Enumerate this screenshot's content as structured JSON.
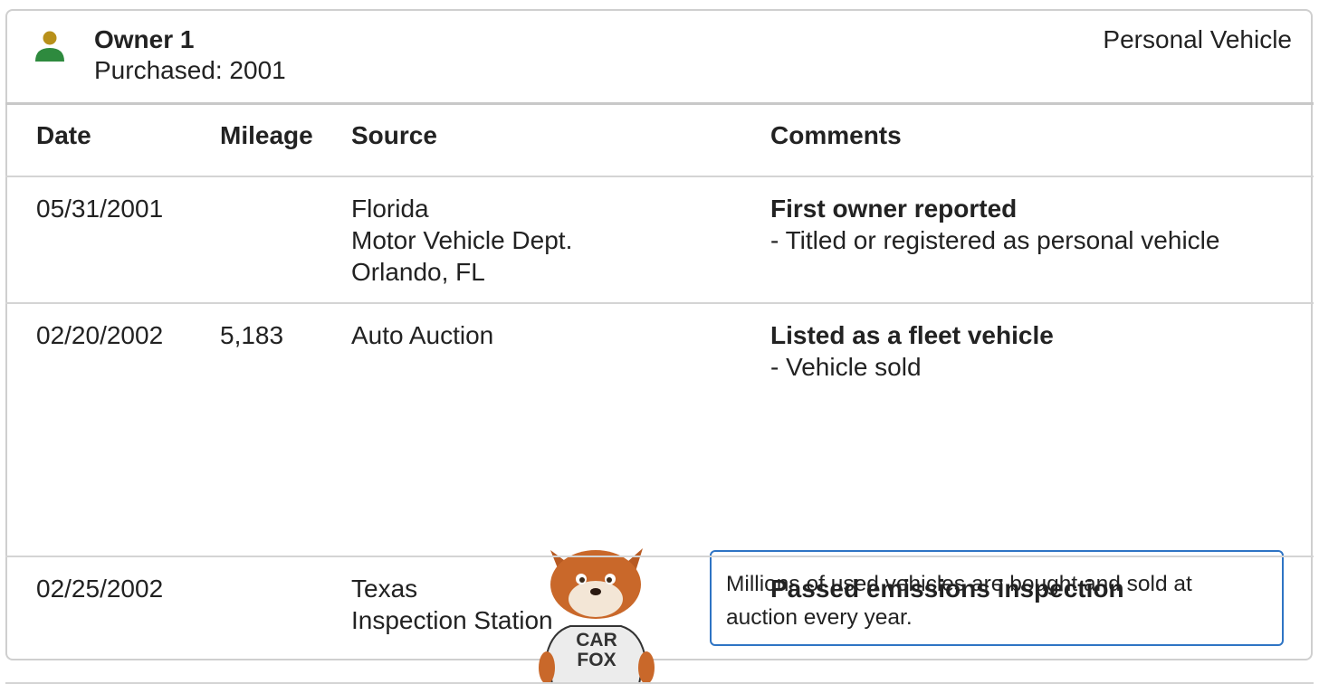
{
  "header": {
    "owner": "Owner 1",
    "purchased": "Purchased: 2001",
    "vehicle_type": "Personal Vehicle"
  },
  "table": {
    "columns": [
      "Date",
      "Mileage",
      "Source",
      "Comments"
    ],
    "rows": [
      {
        "date": "05/31/2001",
        "mileage": null,
        "source": [
          "Florida",
          "Motor Vehicle Dept.",
          "Orlando, FL"
        ],
        "comment_title": "First owner reported",
        "comment_items": [
          "- Titled or registered as personal vehicle"
        ]
      },
      {
        "date": "02/20/2002",
        "mileage": "5,183",
        "source": [
          "Auto Auction"
        ],
        "comment_title": "Listed as a fleet vehicle",
        "comment_items": [
          "- Vehicle sold"
        ],
        "callout": "Millions of used vehicles are bought and sold at auction every year.",
        "mascot_shirt": [
          "CAR",
          "FOX"
        ]
      },
      {
        "date": "02/25/2002",
        "mileage": null,
        "source": [
          "Texas",
          "Inspection Station"
        ],
        "comment_title": "Passed emissions inspection",
        "comment_items": []
      }
    ]
  }
}
